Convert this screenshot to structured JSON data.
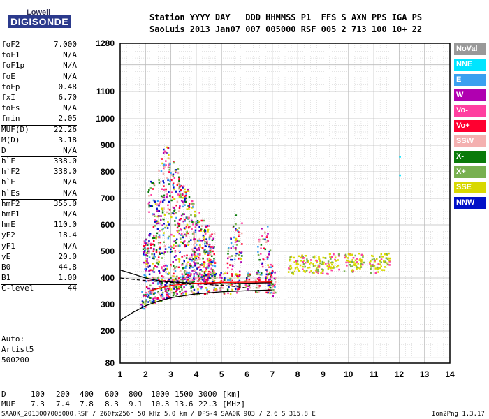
{
  "logo": {
    "top": "Lowell",
    "brand": "DIGISONDE"
  },
  "header": {
    "line1": "Station YYYY DAY   DDD HHMMSS P1  FFS S AXN PPS IGA PS",
    "line2": "SaoLuis 2013 Jan07 007 005000 RSF 005 2 713 100 10+ 22"
  },
  "params": [
    {
      "group": 0,
      "key": "foF2",
      "value": "7.000"
    },
    {
      "group": 0,
      "key": "foF1",
      "value": "N/A"
    },
    {
      "group": 0,
      "key": "foF1p",
      "value": "N/A"
    },
    {
      "group": 0,
      "key": "foE",
      "value": "N/A"
    },
    {
      "group": 0,
      "key": "foEp",
      "value": "0.48"
    },
    {
      "group": 0,
      "key": "fxI",
      "value": "6.70"
    },
    {
      "group": 0,
      "key": "foEs",
      "value": "N/A"
    },
    {
      "group": 0,
      "key": "fmin",
      "value": "2.05"
    },
    {
      "group": 1,
      "key": "MUF(D)",
      "value": "22.26"
    },
    {
      "group": 1,
      "key": "M(D)",
      "value": "3.18"
    },
    {
      "group": 1,
      "key": "D",
      "value": "N/A"
    },
    {
      "group": 2,
      "key": "h`F",
      "value": "338.0"
    },
    {
      "group": 2,
      "key": "h`F2",
      "value": "338.0"
    },
    {
      "group": 2,
      "key": "h`E",
      "value": "N/A"
    },
    {
      "group": 2,
      "key": "h`Es",
      "value": "N/A"
    },
    {
      "group": 3,
      "key": "hmF2",
      "value": "355.0"
    },
    {
      "group": 3,
      "key": "hmF1",
      "value": "N/A"
    },
    {
      "group": 3,
      "key": "hmE",
      "value": "110.0"
    },
    {
      "group": 3,
      "key": "yF2",
      "value": "18.4"
    },
    {
      "group": 3,
      "key": "yF1",
      "value": "N/A"
    },
    {
      "group": 3,
      "key": "yE",
      "value": "20.0"
    },
    {
      "group": 3,
      "key": "B0",
      "value": "44.8"
    },
    {
      "group": 3,
      "key": "B1",
      "value": "1.00"
    },
    {
      "group": 4,
      "key": "C-level",
      "value": "44"
    }
  ],
  "auto": [
    "Auto:",
    "Artist5",
    "500200"
  ],
  "legend": [
    {
      "label": "NoVal",
      "color": "#999999"
    },
    {
      "label": "NNE",
      "color": "#00e5ff"
    },
    {
      "label": "E",
      "color": "#3aa0f0"
    },
    {
      "label": "W",
      "color": "#b000b0"
    },
    {
      "label": "Vo-",
      "color": "#ff3fa0"
    },
    {
      "label": "Vo+",
      "color": "#ff0030"
    },
    {
      "label": "SSW",
      "color": "#f4b0b0"
    },
    {
      "label": "X-",
      "color": "#0a7a0a"
    },
    {
      "label": "X+",
      "color": "#78b050"
    },
    {
      "label": "SSE",
      "color": "#d8d800"
    },
    {
      "label": "NNW",
      "color": "#0010c8"
    }
  ],
  "dtable": {
    "d_label": "D",
    "d_values": [
      "100",
      "200",
      "400",
      "600",
      "800",
      "1000",
      "1500",
      "3000"
    ],
    "d_unit": "[km]",
    "muf_label": "MUF",
    "muf_values": [
      "7.3",
      "7.4",
      "7.8",
      "8.3",
      "9.1",
      "10.3",
      "13.6",
      "22.3"
    ],
    "muf_unit": "[MHz]"
  },
  "footer": {
    "left": "SAA0K_2013007005000.RSF / 260fx256h 50 kHz 5.0 km / DPS-4 SAA0K 903 / 2.6 S 315.8 E",
    "right": "Ion2Png 1.3.17"
  },
  "chart_data": {
    "type": "scatter",
    "xlim": [
      1,
      14
    ],
    "ylim": [
      80,
      1280
    ],
    "xticks": [
      "1",
      "2",
      "3",
      "4",
      "5",
      "6",
      "7",
      "8",
      "9",
      "10",
      "11",
      "12",
      "13",
      "14"
    ],
    "yticks": [
      "1280",
      "1100",
      "1000",
      "900",
      "800",
      "700",
      "600",
      "500",
      "400",
      "300",
      "200",
      "80"
    ],
    "ytick_values": [
      1280,
      1100,
      1000,
      900,
      800,
      700,
      600,
      500,
      400,
      300,
      200,
      80
    ],
    "grid": true,
    "echo_clusters": [
      {
        "name": "F-trace",
        "x": [
          1.9,
          2.1,
          2.3,
          2.5,
          2.7,
          2.9,
          3.1,
          3.3,
          3.5,
          3.8,
          4.1,
          4.4,
          4.7,
          5.0,
          5.3,
          5.6,
          6.0,
          6.4,
          6.8,
          7.0
        ],
        "y": [
          320,
          335,
          345,
          355,
          360,
          365,
          370,
          372,
          375,
          378,
          380,
          382,
          382,
          383,
          383,
          382,
          383,
          385,
          385,
          385
        ]
      },
      {
        "name": "F-spread",
        "x": [
          2.0,
          2.2,
          2.4,
          2.6,
          2.8,
          3.0,
          3.2,
          3.4,
          3.6,
          3.8,
          4.0,
          4.2,
          4.4,
          4.6
        ],
        "y": [
          550,
          780,
          700,
          880,
          900,
          850,
          820,
          760,
          740,
          700,
          650,
          620,
          600,
          580
        ]
      },
      {
        "name": "multi-hop",
        "x": [
          5.3,
          5.5,
          5.7,
          6.5,
          6.7,
          6.9
        ],
        "y": [
          560,
          620,
          580,
          560,
          580,
          500
        ]
      },
      {
        "name": "SSE-patch",
        "x": [
          7.8,
          8.2,
          8.6,
          9.0,
          9.4,
          10.0,
          10.4,
          11.0,
          11.4
        ],
        "y": [
          450,
          460,
          455,
          450,
          460,
          460,
          470,
          455,
          465
        ]
      },
      {
        "name": "isolated",
        "x": [
          12.0,
          12.0
        ],
        "y": [
          860,
          790
        ]
      }
    ],
    "lines": [
      {
        "name": "profile-lower",
        "x": [
          1.0,
          1.5,
          2.0,
          2.5,
          3.0,
          3.5,
          4.0,
          5.0,
          6.0,
          7.0
        ],
        "y": [
          240,
          270,
          295,
          312,
          325,
          333,
          340,
          348,
          352,
          355
        ],
        "color": "#000000",
        "dash": false
      },
      {
        "name": "profile-upper",
        "x": [
          1.0,
          1.5,
          2.0,
          2.5,
          3.0,
          4.0,
          5.0,
          6.0,
          7.0
        ],
        "y": [
          430,
          415,
          400,
          390,
          385,
          380,
          378,
          380,
          382
        ],
        "color": "#000000",
        "dash": false
      },
      {
        "name": "profile-dashed",
        "x": [
          1.0,
          2.0,
          3.0,
          4.0,
          5.0,
          5.5,
          6.0
        ],
        "y": [
          400,
          390,
          383,
          378,
          372,
          368,
          362
        ],
        "color": "#000000",
        "dash": true
      },
      {
        "name": "red-fit",
        "x": [
          2.1,
          3.0,
          4.0,
          5.0,
          6.0,
          7.0
        ],
        "y": [
          350,
          372,
          380,
          383,
          384,
          385
        ],
        "color": "#ff0000",
        "dash": false
      }
    ]
  }
}
